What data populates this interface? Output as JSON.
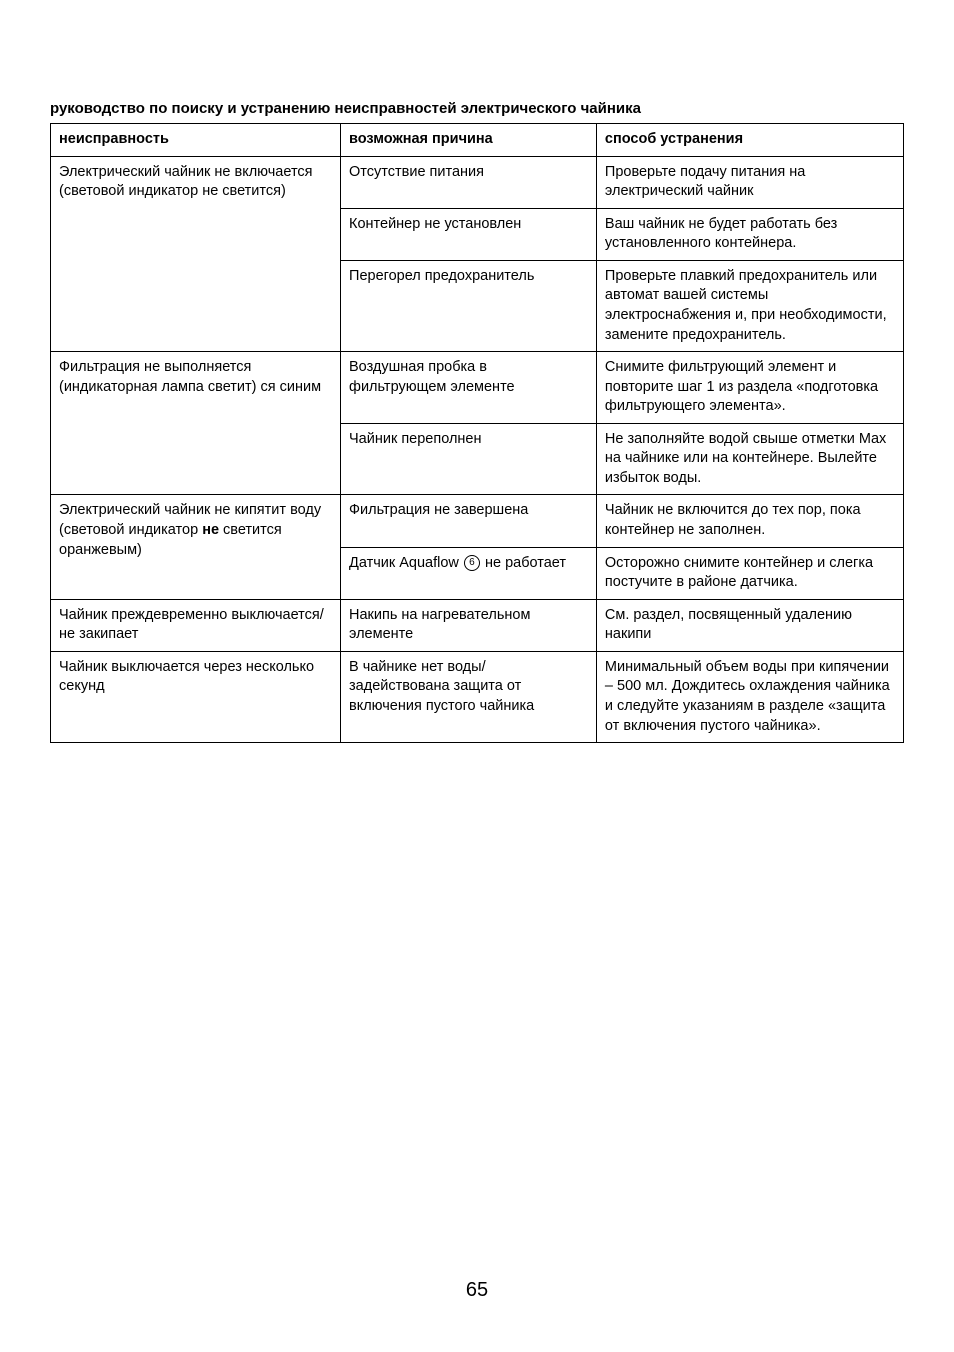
{
  "title": "руководство по поиску и устранению неисправностей электрического чайника",
  "columns": [
    "неисправность",
    "возможная причина",
    "способ устранения"
  ],
  "rows": [
    {
      "fault": "Электрический чайник не включается (световой индикатор не светится)",
      "cause": "Отсутствие питания",
      "remedy": "Проверьте подачу питания на электрический чайник",
      "fault_rowspan": 3
    },
    {
      "cause": "Контейнер не установлен",
      "remedy": "Ваш чайник не будет работать без установленного контейнера."
    },
    {
      "cause": "Перегорел предохранитель",
      "remedy": "Проверьте плавкий предохранитель или автомат вашей системы электроснабжения и, при необходимости, замените предохранитель."
    },
    {
      "fault": "Фильтрация не выполняется (индикаторная лампа светит) ся синим",
      "cause": "Воздушная пробка в фильтрующем элементе",
      "remedy": "Снимите фильтрующий элемент и повторите шаг 1 из раздела «подготовка фильтрующего элемента».",
      "fault_rowspan": 2
    },
    {
      "cause": "Чайник переполнен",
      "remedy": "Не заполняйте водой свыше отметки Max на чайнике или на контейнере. Вылейте избыток воды."
    },
    {
      "fault_html": "Электрический чайник не кипятит воду (световой индикатор <b>не</b> светится оранжевым)",
      "cause": "Фильтрация не завершена",
      "remedy": "Чайник не включится до тех пор, пока контейнер не заполнен.",
      "fault_rowspan": 2
    },
    {
      "cause_html": "Датчик Aquaflow <span class=\"circle-num\">6</span> не работает",
      "remedy": "Осторожно снимите контейнер и слегка постучите в районе датчика."
    },
    {
      "fault": "Чайник преждевременно выключается/не закипает",
      "cause": "Накипь на нагревательном элементе",
      "remedy": "См. раздел, посвященный удалению накипи"
    },
    {
      "fault": "Чайник выключается через несколько секунд",
      "cause": "В чайнике нет воды/ задействована защита от включения пустого чайника",
      "remedy": "Минимальный объем воды при кипячении – 500 мл. Дождитесь охлаждения чайника и следуйте указаниям в разделе «защита от включения пустого чайника»."
    }
  ],
  "page_number": "65",
  "style": {
    "font_family": "Arial",
    "text_color": "#000000",
    "background_color": "#ffffff",
    "border_color": "#000000",
    "title_fontsize": 15,
    "cell_fontsize": 14.5,
    "pagenum_fontsize": 20,
    "column_widths_pct": [
      34,
      30,
      36
    ]
  }
}
